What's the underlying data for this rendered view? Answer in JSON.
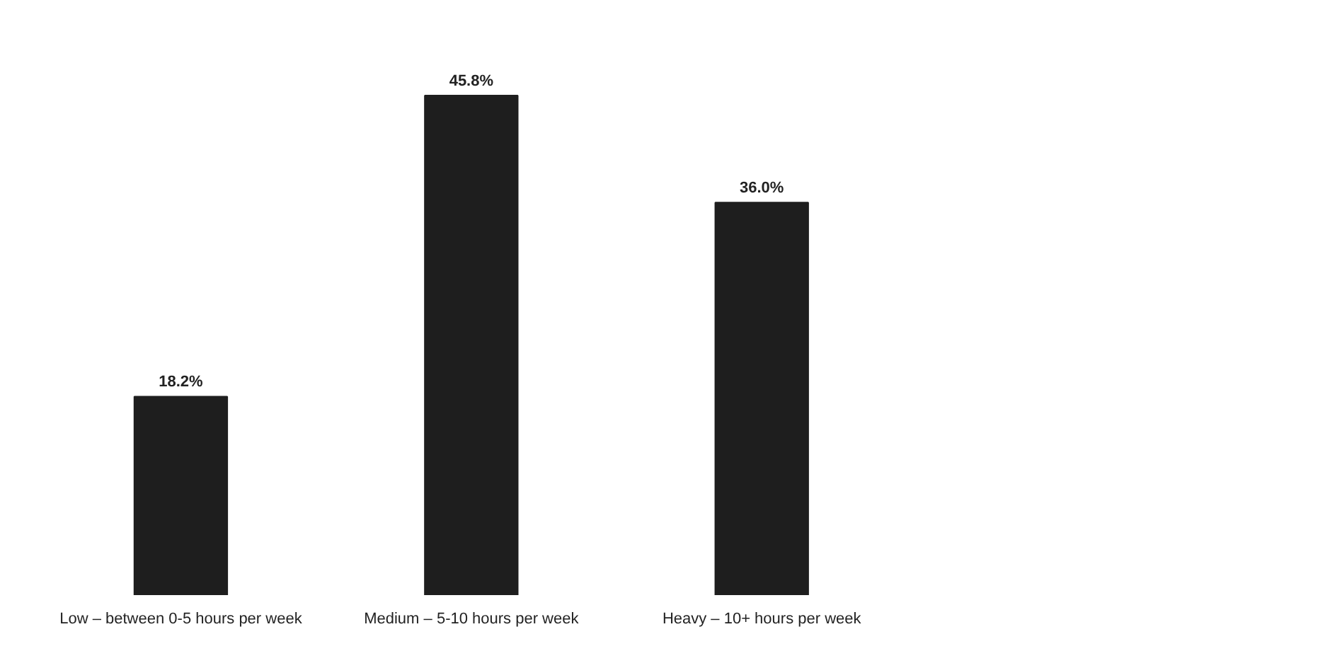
{
  "chart_data": {
    "type": "bar",
    "categories": [
      "Low – between 0-5 hours per week",
      "Medium – 5-10 hours per week",
      "Heavy – 10+ hours per week"
    ],
    "values": [
      18.2,
      45.8,
      36.0
    ],
    "value_labels": [
      "18.2%",
      "45.8%",
      "36.0%"
    ],
    "color": "#1e1e1e"
  }
}
